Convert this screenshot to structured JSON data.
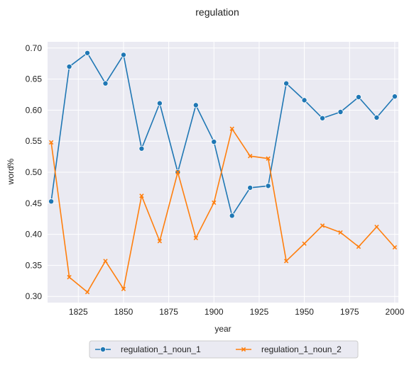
{
  "chart_data": {
    "type": "line",
    "title": "regulation",
    "xlabel": "year",
    "ylabel": "word%",
    "xlim": [
      1808,
      2002
    ],
    "ylim": [
      0.29,
      0.71
    ],
    "xticks": [
      1825,
      1850,
      1875,
      1900,
      1925,
      1950,
      1975,
      2000
    ],
    "yticks": [
      0.3,
      0.35,
      0.4,
      0.45,
      0.5,
      0.55,
      0.6,
      0.65,
      0.7
    ],
    "ytick_labels": [
      "0.30",
      "0.35",
      "0.40",
      "0.45",
      "0.50",
      "0.55",
      "0.60",
      "0.65",
      "0.70"
    ],
    "grid": true,
    "legend_position": "bottom-center",
    "x": [
      1810,
      1820,
      1830,
      1840,
      1850,
      1860,
      1870,
      1880,
      1890,
      1900,
      1910,
      1920,
      1930,
      1940,
      1950,
      1960,
      1970,
      1980,
      1990,
      2000
    ],
    "series": [
      {
        "name": "regulation_1_noun_1",
        "color": "#1f77b4",
        "marker": "circle",
        "values": [
          0.453,
          0.67,
          0.692,
          0.643,
          0.689,
          0.538,
          0.611,
          0.5,
          0.608,
          0.549,
          0.43,
          0.475,
          0.478,
          0.643,
          0.616,
          0.587,
          0.597,
          0.621,
          0.588,
          0.622
        ]
      },
      {
        "name": "regulation_1_noun_2",
        "color": "#ff7f0e",
        "marker": "x",
        "values": [
          0.548,
          0.331,
          0.307,
          0.357,
          0.312,
          0.462,
          0.389,
          0.5,
          0.394,
          0.451,
          0.57,
          0.526,
          0.522,
          0.357,
          0.385,
          0.414,
          0.403,
          0.38,
          0.412,
          0.379
        ]
      }
    ]
  }
}
